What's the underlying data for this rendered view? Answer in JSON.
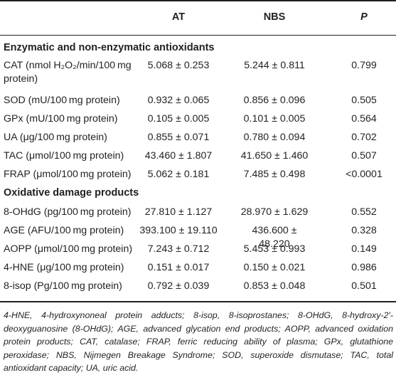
{
  "header": {
    "at": "AT",
    "nbs": "NBS",
    "p": "P"
  },
  "sections": [
    {
      "title": "Enzymatic and non-enzymatic antioxidants",
      "rows": [
        {
          "label_line1": "CAT (nmol H₂O₂/min/100 mg",
          "label_line2": "protein)",
          "at": "5.068 ± 0.253",
          "nbs": "5.244 ± 0.811",
          "p": "0.799"
        },
        {
          "label": "SOD (mU/100 mg protein)",
          "at": "0.932 ± 0.065",
          "nbs": "0.856 ± 0.096",
          "p": "0.505"
        },
        {
          "label": "GPx (mU/100 mg protein)",
          "at": "0.105 ± 0.005",
          "nbs": "0.101 ± 0.005",
          "p": "0.564"
        },
        {
          "label": "UA (μg/100 mg protein)",
          "at": "0.855 ± 0.071",
          "nbs": "0.780 ± 0.094",
          "p": "0.702"
        },
        {
          "label": "TAC (μmol/100 mg protein)",
          "at": "43.460 ± 1.807",
          "nbs": "41.650 ± 1.460",
          "p": "0.507"
        },
        {
          "label": "FRAP (μmol/100 mg protein)",
          "at": "5.062 ± 0.181",
          "nbs": "7.485 ± 0.498",
          "p": "<0.0001"
        }
      ]
    },
    {
      "title": "Oxidative damage products",
      "rows": [
        {
          "label": "8-OHdG (pg/100 mg protein)",
          "at": "27.810 ± 1.127",
          "nbs": "28.970 ± 1.629",
          "p": "0.552"
        },
        {
          "label": "AGE (AFU/100 mg protein)",
          "at": "393.100 ± 19.110",
          "nbs": "436.600 ± 48.220",
          "p": "0.328"
        },
        {
          "label": "AOPP (μmol/100 mg protein)",
          "at": "7.243 ± 0.712",
          "nbs": "5.453 ± 0.993",
          "p": "0.149"
        },
        {
          "label": "4-HNE (μg/100 mg protein)",
          "at": "0.151 ± 0.017",
          "nbs": "0.150 ± 0.021",
          "p": "0.986"
        },
        {
          "label": "8-isop (Pg/100 mg protein)",
          "at": "0.792 ± 0.039",
          "nbs": "0.853 ± 0.048",
          "p": "0.501"
        }
      ]
    }
  ],
  "footnote": "4-HNE, 4-hydroxynoneal protein adducts; 8-isop, 8-isoprostanes; 8-OHdG, 8-hydroxy-2′-deoxyguanosine (8-OHdG); AGE, advanced glycation end products; AOPP, advanced oxidation protein products; CAT, catalase; FRAP, ferric reducing ability of plasma; GPx, glutathione peroxidase; NBS, Nijmegen Breakage Syndrome; SOD, superoxide dismutase; TAC, total antioxidant capacity; UA, uric acid."
}
